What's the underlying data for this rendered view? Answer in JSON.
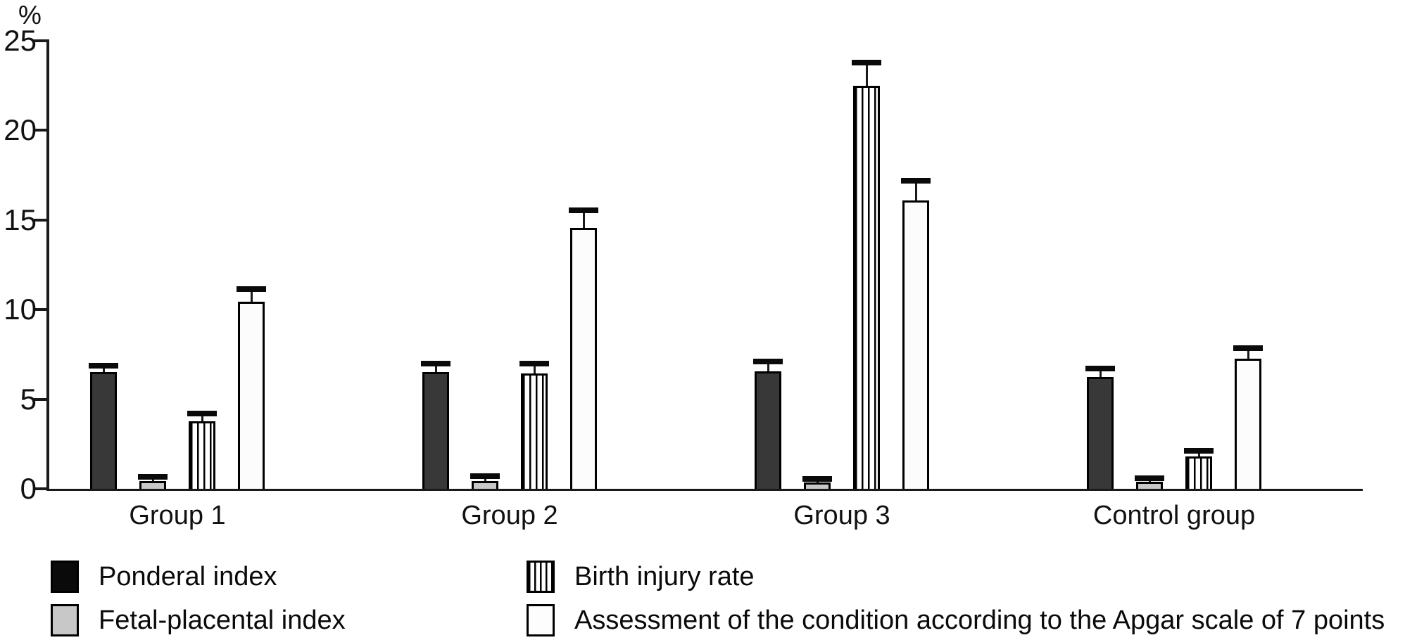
{
  "chart_data": {
    "type": "bar",
    "title": "",
    "ylabel": "%",
    "xlabel": "",
    "ylim": [
      0,
      25
    ],
    "yticks": [
      0,
      5,
      10,
      15,
      20,
      25
    ],
    "grid": false,
    "legend_position": "bottom",
    "error_bars": true,
    "categories": [
      "Group 1",
      "Group 2",
      "Group 3",
      "Control group"
    ],
    "series": [
      {
        "name": "Ponderal index",
        "style": "solid-dark",
        "values": [
          6.5,
          6.5,
          6.55,
          6.25
        ],
        "errors": [
          0.35,
          0.5,
          0.55,
          0.45
        ]
      },
      {
        "name": "Fetal-placental index",
        "style": "solid-gray",
        "values": [
          0.45,
          0.45,
          0.35,
          0.4
        ],
        "errors": [
          0.2,
          0.25,
          0.2,
          0.2
        ]
      },
      {
        "name": "Birth injury rate",
        "style": "striped-vertical",
        "values": [
          3.75,
          6.45,
          22.5,
          1.8
        ],
        "errors": [
          0.45,
          0.55,
          1.3,
          0.3
        ]
      },
      {
        "name": "Assessment of the condition according to the Apgar scale of 7 points",
        "style": "solid-white",
        "values": [
          10.45,
          14.55,
          16.1,
          7.25
        ],
        "errors": [
          0.7,
          1.0,
          1.1,
          0.6
        ]
      }
    ],
    "colors": {
      "bar_dark": "#383838",
      "bar_gray": "#c8c8c8",
      "bar_white": "#fcfcfc",
      "stroke": "#000000"
    }
  }
}
